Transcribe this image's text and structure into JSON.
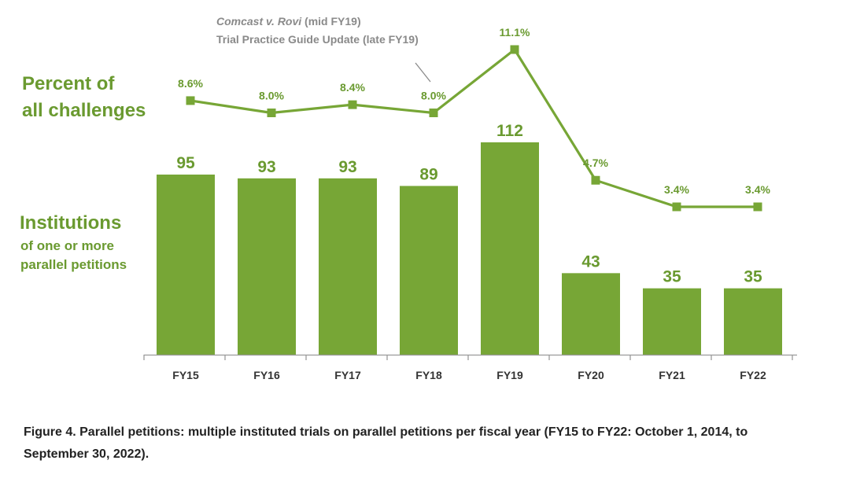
{
  "chart_data": {
    "type": "bar",
    "categories": [
      "FY15",
      "FY16",
      "FY17",
      "FY18",
      "FY19",
      "FY20",
      "FY21",
      "FY22"
    ],
    "series": [
      {
        "name": "Institutions of one or more parallel petitions",
        "type": "bar",
        "values": [
          95,
          93,
          93,
          89,
          112,
          43,
          35,
          35
        ],
        "labels": [
          "95",
          "93",
          "93",
          "89",
          "112",
          "43",
          "35",
          "35"
        ]
      },
      {
        "name": "Percent of all challenges",
        "type": "line",
        "values": [
          8.6,
          8.0,
          8.4,
          8.0,
          11.1,
          4.7,
          3.4,
          3.4
        ],
        "labels": [
          "8.6%",
          "8.0%",
          "8.4%",
          "8.0%",
          "11.1%",
          "4.7%",
          "3.4%",
          "3.4%"
        ]
      }
    ],
    "legend": {
      "line_title": [
        "Percent of",
        "all challenges"
      ],
      "bar_title": "Institutions",
      "bar_subtitle": [
        "of one or more",
        "parallel petitions"
      ]
    },
    "annotation": {
      "line1_italic": "Comcast v. Rovi",
      "line1_rest": " (mid FY19)",
      "line2": "Trial Practice Guide Update (late FY19)"
    },
    "ylim_bars": [
      0,
      112
    ],
    "grid": false
  },
  "caption": {
    "line1": "Figure 4. Parallel petitions: multiple instituted trials on parallel petitions per fiscal year (FY15 to FY22: October 1, 2014, to",
    "line2": "September 30, 2022)."
  },
  "colors": {
    "bar": "#77a636",
    "line": "#77a636",
    "label": "#6a9a30",
    "annotation": "#8a8a8a",
    "axis": "#9a9a9a"
  }
}
